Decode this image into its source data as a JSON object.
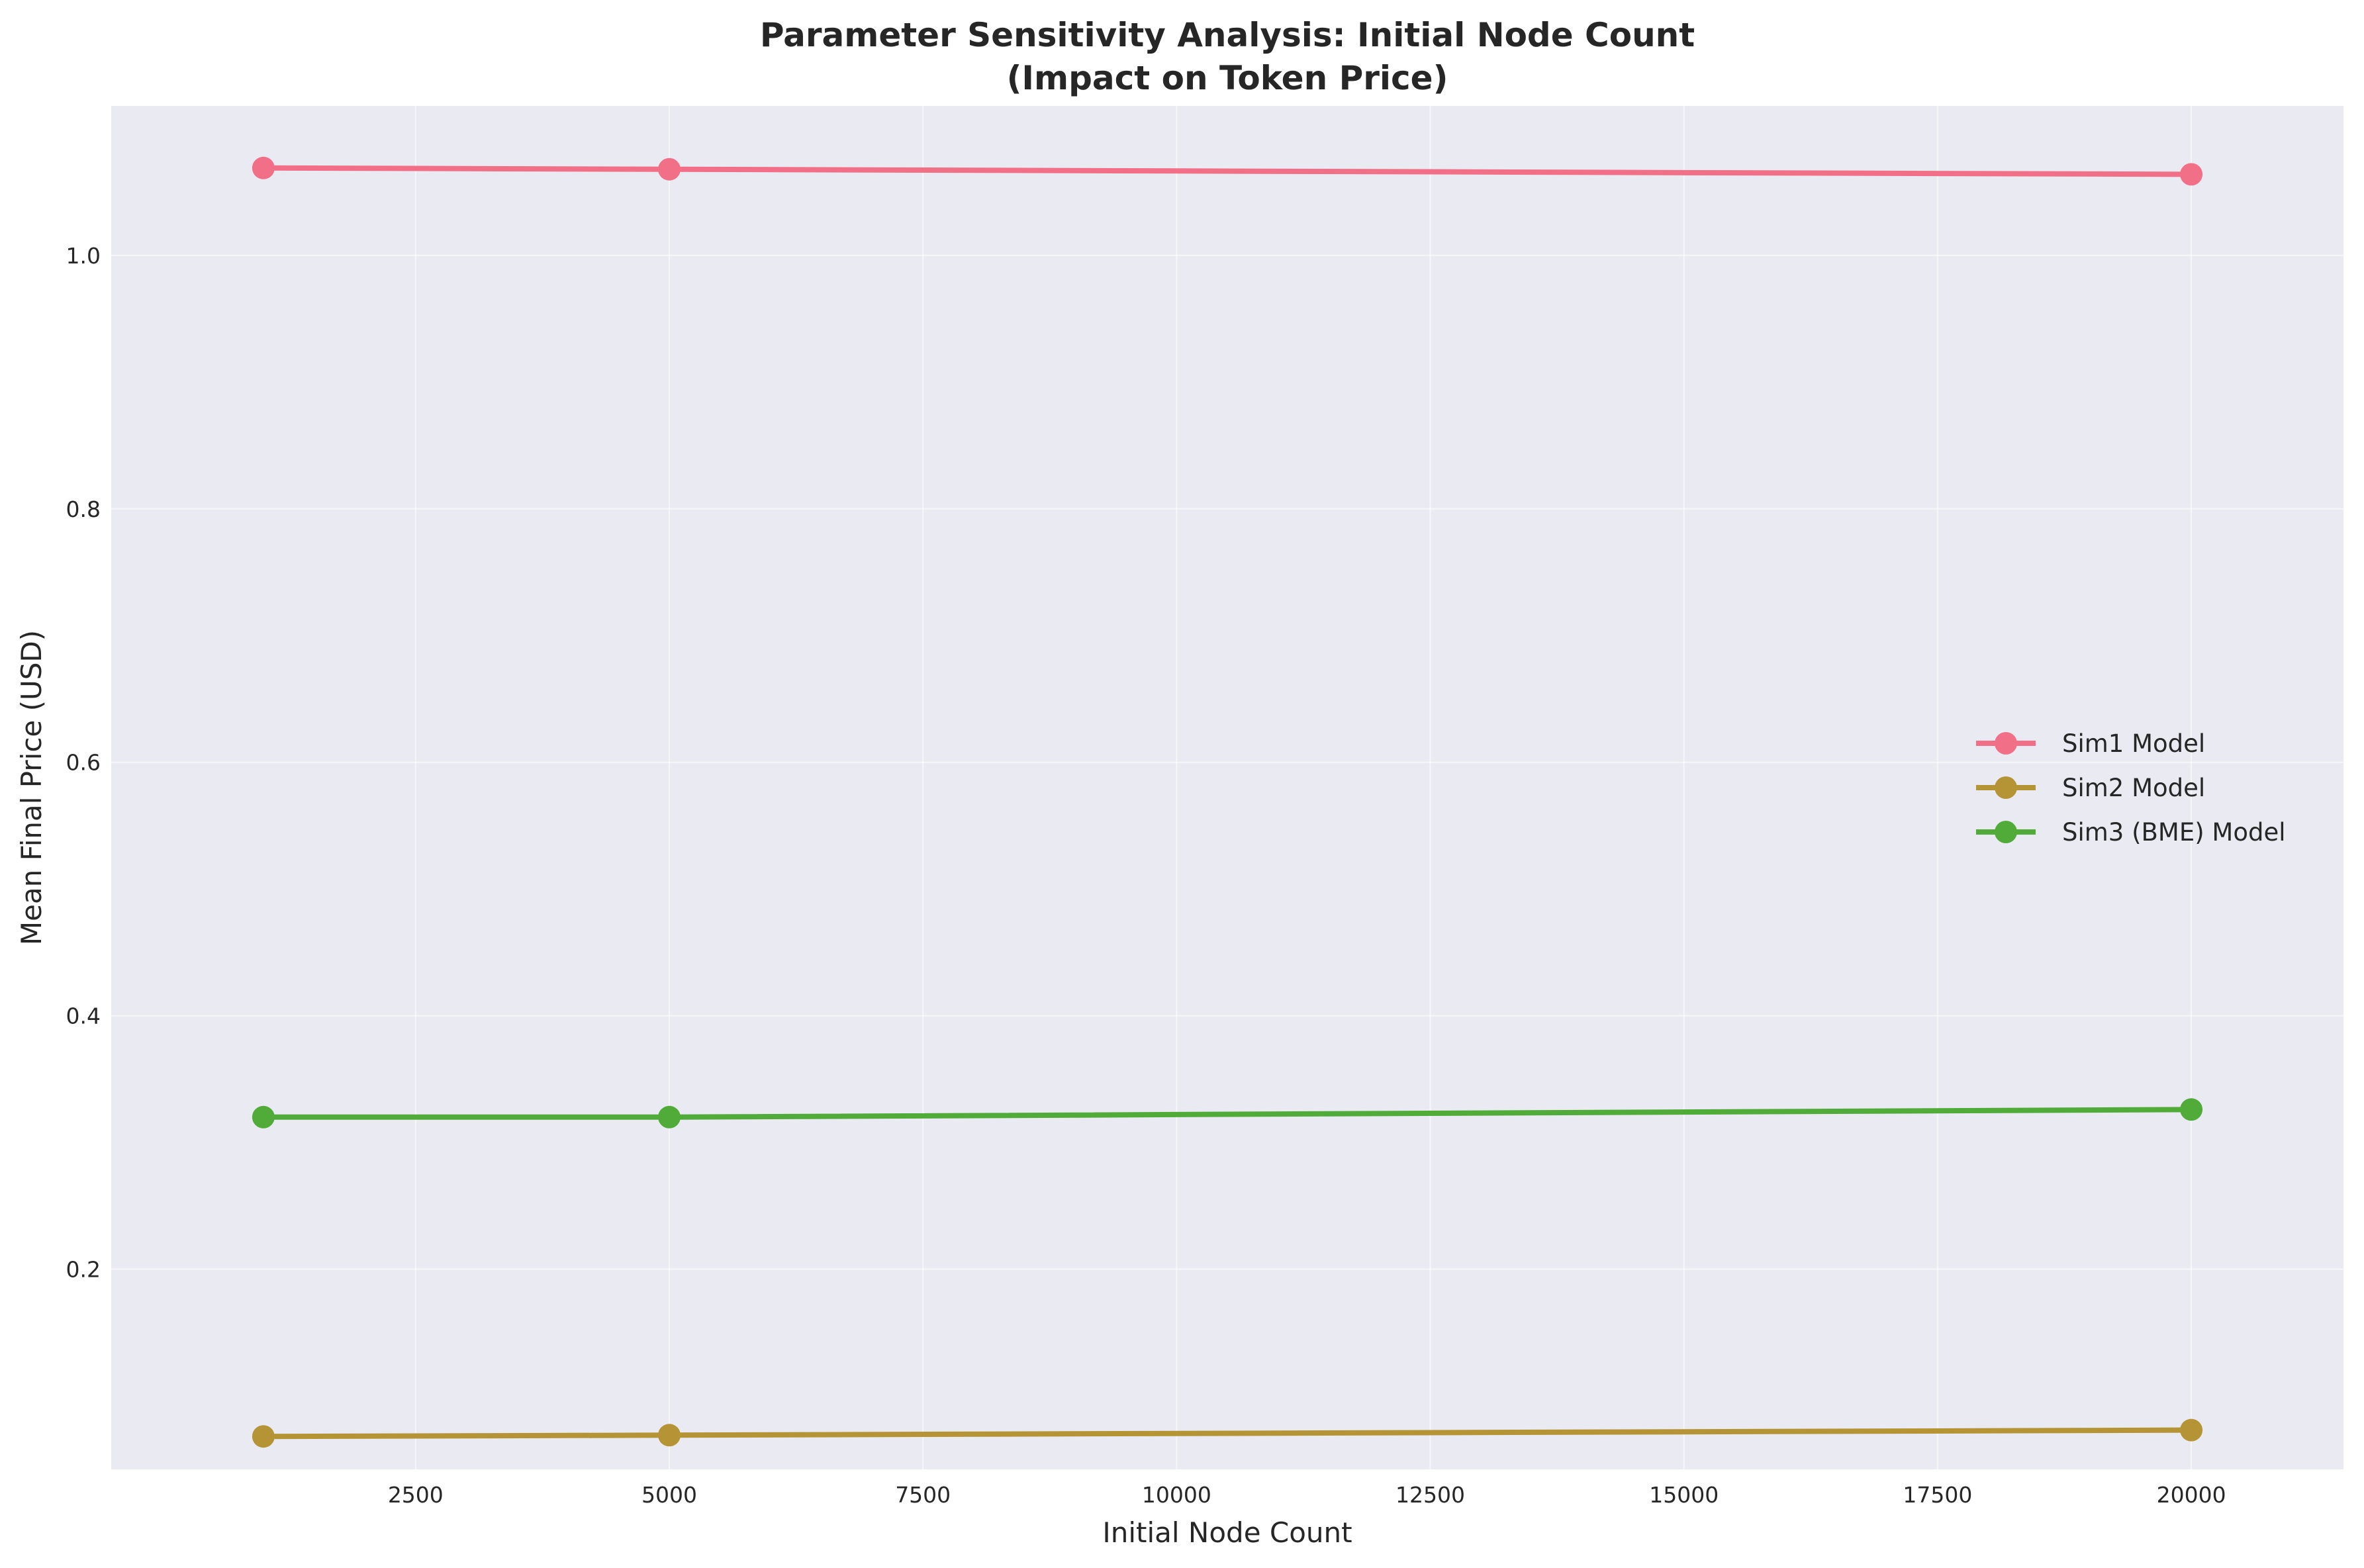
{
  "chart_data": {
    "type": "line",
    "title": [
      "Parameter Sensitivity Analysis: Initial Node Count",
      "(Impact on Token Price)"
    ],
    "xlabel": "Initial Node Count",
    "ylabel": "Mean Final Price (USD)",
    "xlim": [
      -500,
      21500
    ],
    "ylim": [
      0.042,
      1.118
    ],
    "xticks": [
      2500,
      5000,
      7500,
      10000,
      12500,
      15000,
      17500,
      20000
    ],
    "xtick_labels": [
      "2500",
      "5000",
      "7500",
      "10000",
      "12500",
      "15000",
      "17500",
      "20000"
    ],
    "yticks": [
      0.2,
      0.4,
      0.6,
      0.8,
      1.0
    ],
    "ytick_labels": [
      "0.2",
      "0.4",
      "0.6",
      "0.8",
      "1.0"
    ],
    "grid": true,
    "legend_position": "center-right",
    "x": [
      1000,
      5000,
      20000
    ],
    "series": [
      {
        "name": "Sim1 Model",
        "color": "#f17087",
        "values": [
          1.069,
          1.068,
          1.064
        ]
      },
      {
        "name": "Sim2 Model",
        "color": "#b49435",
        "values": [
          0.068,
          0.069,
          0.073
        ]
      },
      {
        "name": "Sim3 (BME) Model",
        "color": "#50ab39",
        "values": [
          0.32,
          0.32,
          0.326
        ]
      }
    ]
  }
}
